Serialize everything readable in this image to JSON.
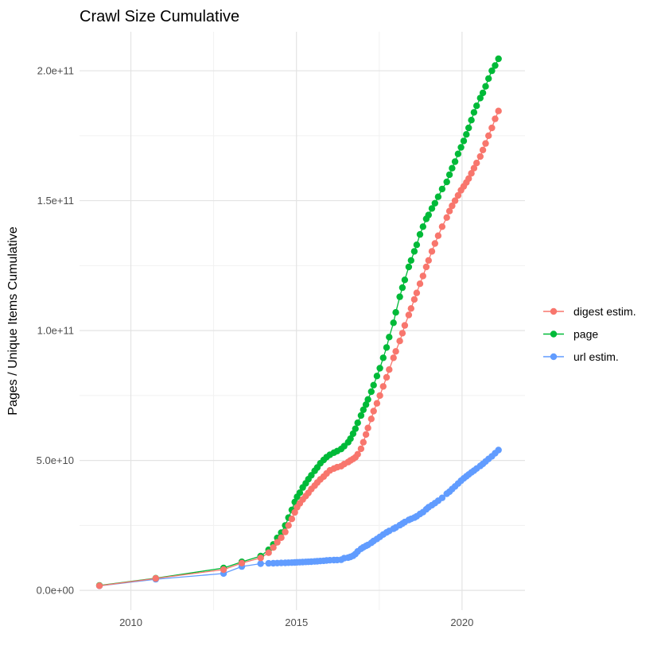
{
  "chart_data": {
    "type": "scatter",
    "title": "Crawl Size Cumulative",
    "xlabel": "",
    "ylabel": "Pages / Unique Items Cumulative",
    "y_unit": "items (values below in billions, 1e9)",
    "x_range": [
      2008.45,
      2021.9
    ],
    "y_range_e9": [
      -7.6,
      215
    ],
    "x_ticks": [
      {
        "value": 2010,
        "label": "2010"
      },
      {
        "value": 2015,
        "label": "2015"
      },
      {
        "value": 2020,
        "label": "2020"
      }
    ],
    "x_minor": [
      2012.5,
      2017.5
    ],
    "y_ticks": [
      {
        "value_e9": 0,
        "label": "0.0e+00"
      },
      {
        "value_e9": 50,
        "label": "5.0e+10"
      },
      {
        "value_e9": 100,
        "label": "1.0e+11"
      },
      {
        "value_e9": 150,
        "label": "1.5e+11"
      },
      {
        "value_e9": 200,
        "label": "2.0e+11"
      }
    ],
    "y_minor_e9": [
      25,
      75,
      125,
      175
    ],
    "grid": {
      "major_color": "#e3e3e3",
      "minor_color": "#f1f1f1",
      "background": "#ffffff"
    },
    "legend": {
      "position": "right",
      "entries": [
        {
          "label": "digest estim.",
          "color": "#F8766D"
        },
        {
          "label": "page",
          "color": "#00BA38"
        },
        {
          "label": "url estim.",
          "color": "#619CFF"
        }
      ]
    },
    "series": [
      {
        "name": "digest estim.",
        "color": "#F8766D",
        "points": [
          [
            2009.05,
            1.8
          ],
          [
            2010.75,
            4.6
          ],
          [
            2012.8,
            8.0
          ],
          [
            2013.35,
            10.5
          ],
          [
            2013.92,
            12.5
          ],
          [
            2014.16,
            14.5
          ],
          [
            2014.3,
            16.5
          ],
          [
            2014.42,
            18.5
          ],
          [
            2014.54,
            20.3
          ],
          [
            2014.66,
            22.5
          ],
          [
            2014.76,
            25.0
          ],
          [
            2014.86,
            27.5
          ],
          [
            2014.95,
            30.0
          ],
          [
            2015.02,
            32.0
          ],
          [
            2015.1,
            33.5
          ],
          [
            2015.19,
            35.0
          ],
          [
            2015.28,
            36.3
          ],
          [
            2015.36,
            37.5
          ],
          [
            2015.45,
            39.0
          ],
          [
            2015.55,
            40.3
          ],
          [
            2015.63,
            41.5
          ],
          [
            2015.72,
            42.7
          ],
          [
            2015.82,
            43.8
          ],
          [
            2015.91,
            45.0
          ],
          [
            2016.01,
            46.2
          ],
          [
            2016.13,
            46.9
          ],
          [
            2016.23,
            47.4
          ],
          [
            2016.35,
            47.8
          ],
          [
            2016.44,
            48.6
          ],
          [
            2016.56,
            49.4
          ],
          [
            2016.63,
            50.0
          ],
          [
            2016.71,
            50.6
          ],
          [
            2016.78,
            51.2
          ],
          [
            2016.85,
            52.4
          ],
          [
            2016.95,
            54.5
          ],
          [
            2017.02,
            57.0
          ],
          [
            2017.1,
            60.0
          ],
          [
            2017.16,
            62.5
          ],
          [
            2017.26,
            66.0
          ],
          [
            2017.33,
            69.0
          ],
          [
            2017.43,
            72.0
          ],
          [
            2017.52,
            75.0
          ],
          [
            2017.62,
            78.5
          ],
          [
            2017.72,
            82.0
          ],
          [
            2017.8,
            85.0
          ],
          [
            2017.93,
            89.5
          ],
          [
            2018.0,
            92.0
          ],
          [
            2018.12,
            96.0
          ],
          [
            2018.2,
            99.0
          ],
          [
            2018.27,
            102.0
          ],
          [
            2018.39,
            106.0
          ],
          [
            2018.46,
            108.5
          ],
          [
            2018.56,
            112.0
          ],
          [
            2018.63,
            114.5
          ],
          [
            2018.73,
            118.0
          ],
          [
            2018.82,
            121.0
          ],
          [
            2018.92,
            124.5
          ],
          [
            2018.99,
            127.0
          ],
          [
            2019.09,
            130.5
          ],
          [
            2019.18,
            133.5
          ],
          [
            2019.28,
            136.5
          ],
          [
            2019.4,
            140.0
          ],
          [
            2019.54,
            143.5
          ],
          [
            2019.62,
            146.0
          ],
          [
            2019.7,
            148.0
          ],
          [
            2019.79,
            150.0
          ],
          [
            2019.88,
            152.0
          ],
          [
            2019.97,
            154.0
          ],
          [
            2020.05,
            155.5
          ],
          [
            2020.13,
            157.0
          ],
          [
            2020.2,
            158.5
          ],
          [
            2020.28,
            160.5
          ],
          [
            2020.36,
            162.5
          ],
          [
            2020.44,
            164.5
          ],
          [
            2020.55,
            167.0
          ],
          [
            2020.63,
            169.5
          ],
          [
            2020.71,
            172.0
          ],
          [
            2020.8,
            175.0
          ],
          [
            2020.9,
            178.0
          ],
          [
            2021.0,
            181.5
          ],
          [
            2021.1,
            184.5
          ]
        ]
      },
      {
        "name": "page",
        "color": "#00BA38",
        "points": [
          [
            2009.05,
            1.9
          ],
          [
            2010.75,
            4.7
          ],
          [
            2012.8,
            8.6
          ],
          [
            2013.35,
            11.0
          ],
          [
            2013.92,
            13.2
          ],
          [
            2014.16,
            15.6
          ],
          [
            2014.3,
            17.7
          ],
          [
            2014.42,
            20.2
          ],
          [
            2014.54,
            22.2
          ],
          [
            2014.66,
            25.0
          ],
          [
            2014.76,
            28.0
          ],
          [
            2014.86,
            31.0
          ],
          [
            2014.95,
            34.0
          ],
          [
            2015.02,
            36.0
          ],
          [
            2015.1,
            37.6
          ],
          [
            2015.19,
            39.6
          ],
          [
            2015.28,
            41.2
          ],
          [
            2015.36,
            42.8
          ],
          [
            2015.45,
            44.3
          ],
          [
            2015.55,
            46.0
          ],
          [
            2015.63,
            47.3
          ],
          [
            2015.72,
            48.9
          ],
          [
            2015.82,
            50.2
          ],
          [
            2015.91,
            51.3
          ],
          [
            2016.01,
            52.2
          ],
          [
            2016.13,
            53.0
          ],
          [
            2016.23,
            53.6
          ],
          [
            2016.35,
            54.4
          ],
          [
            2016.44,
            55.5
          ],
          [
            2016.56,
            57.0
          ],
          [
            2016.63,
            58.4
          ],
          [
            2016.71,
            60.3
          ],
          [
            2016.78,
            62.2
          ],
          [
            2016.85,
            64.5
          ],
          [
            2016.95,
            67.3
          ],
          [
            2017.02,
            69.5
          ],
          [
            2017.1,
            71.5
          ],
          [
            2017.16,
            73.5
          ],
          [
            2017.26,
            76.5
          ],
          [
            2017.33,
            79.0
          ],
          [
            2017.43,
            82.5
          ],
          [
            2017.52,
            85.5
          ],
          [
            2017.62,
            89.5
          ],
          [
            2017.72,
            93.5
          ],
          [
            2017.8,
            97.5
          ],
          [
            2017.93,
            103.0
          ],
          [
            2018.0,
            107.0
          ],
          [
            2018.12,
            113.0
          ],
          [
            2018.2,
            116.5
          ],
          [
            2018.27,
            119.5
          ],
          [
            2018.39,
            124.5
          ],
          [
            2018.46,
            127.0
          ],
          [
            2018.56,
            130.5
          ],
          [
            2018.63,
            133.0
          ],
          [
            2018.73,
            137.0
          ],
          [
            2018.82,
            140.0
          ],
          [
            2018.92,
            143.0
          ],
          [
            2018.99,
            144.5
          ],
          [
            2019.09,
            147.0
          ],
          [
            2019.18,
            149.0
          ],
          [
            2019.28,
            151.5
          ],
          [
            2019.4,
            154.5
          ],
          [
            2019.54,
            157.2
          ],
          [
            2019.62,
            160.0
          ],
          [
            2019.7,
            162.5
          ],
          [
            2019.79,
            165.0
          ],
          [
            2019.88,
            168.0
          ],
          [
            2019.97,
            170.5
          ],
          [
            2020.05,
            173.0
          ],
          [
            2020.13,
            175.5
          ],
          [
            2020.2,
            178.0
          ],
          [
            2020.28,
            181.0
          ],
          [
            2020.36,
            184.0
          ],
          [
            2020.44,
            186.5
          ],
          [
            2020.55,
            189.5
          ],
          [
            2020.63,
            191.5
          ],
          [
            2020.71,
            194.0
          ],
          [
            2020.8,
            197.0
          ],
          [
            2020.9,
            200.0
          ],
          [
            2021.0,
            202.0
          ],
          [
            2021.1,
            204.6
          ]
        ]
      },
      {
        "name": "url estim.",
        "color": "#619CFF",
        "points": [
          [
            2009.05,
            1.75
          ],
          [
            2010.75,
            4.3
          ],
          [
            2012.8,
            6.5
          ],
          [
            2013.35,
            9.2
          ],
          [
            2013.92,
            10.3
          ],
          [
            2014.16,
            10.4
          ],
          [
            2014.3,
            10.45
          ],
          [
            2014.42,
            10.5
          ],
          [
            2014.54,
            10.55
          ],
          [
            2014.66,
            10.6
          ],
          [
            2014.76,
            10.65
          ],
          [
            2014.86,
            10.7
          ],
          [
            2014.95,
            10.75
          ],
          [
            2015.02,
            10.8
          ],
          [
            2015.1,
            10.85
          ],
          [
            2015.19,
            10.9
          ],
          [
            2015.28,
            10.95
          ],
          [
            2015.36,
            11.0
          ],
          [
            2015.45,
            11.05
          ],
          [
            2015.55,
            11.15
          ],
          [
            2015.63,
            11.2
          ],
          [
            2015.72,
            11.3
          ],
          [
            2015.82,
            11.4
          ],
          [
            2015.91,
            11.5
          ],
          [
            2016.01,
            11.6
          ],
          [
            2016.13,
            11.65
          ],
          [
            2016.23,
            11.7
          ],
          [
            2016.35,
            11.8
          ],
          [
            2016.44,
            12.4
          ],
          [
            2016.56,
            12.6
          ],
          [
            2016.63,
            12.9
          ],
          [
            2016.71,
            13.3
          ],
          [
            2016.78,
            14.0
          ],
          [
            2016.85,
            15.0
          ],
          [
            2016.95,
            16.0
          ],
          [
            2017.02,
            16.6
          ],
          [
            2017.1,
            17.1
          ],
          [
            2017.16,
            17.5
          ],
          [
            2017.26,
            18.3
          ],
          [
            2017.33,
            19.0
          ],
          [
            2017.43,
            19.8
          ],
          [
            2017.52,
            20.6
          ],
          [
            2017.62,
            21.5
          ],
          [
            2017.72,
            22.3
          ],
          [
            2017.8,
            22.9
          ],
          [
            2017.93,
            23.7
          ],
          [
            2018.0,
            24.2
          ],
          [
            2018.12,
            25.1
          ],
          [
            2018.2,
            25.7
          ],
          [
            2018.27,
            26.3
          ],
          [
            2018.39,
            27.1
          ],
          [
            2018.46,
            27.5
          ],
          [
            2018.56,
            28.0
          ],
          [
            2018.63,
            28.5
          ],
          [
            2018.73,
            29.4
          ],
          [
            2018.82,
            30.1
          ],
          [
            2018.92,
            31.2
          ],
          [
            2018.99,
            32.0
          ],
          [
            2019.09,
            32.8
          ],
          [
            2019.18,
            33.6
          ],
          [
            2019.28,
            34.5
          ],
          [
            2019.4,
            35.6
          ],
          [
            2019.54,
            37.2
          ],
          [
            2019.62,
            38.0
          ],
          [
            2019.7,
            39.0
          ],
          [
            2019.79,
            40.0
          ],
          [
            2019.88,
            41.1
          ],
          [
            2019.97,
            42.2
          ],
          [
            2020.05,
            43.1
          ],
          [
            2020.13,
            43.9
          ],
          [
            2020.2,
            44.6
          ],
          [
            2020.28,
            45.4
          ],
          [
            2020.36,
            46.1
          ],
          [
            2020.44,
            46.9
          ],
          [
            2020.55,
            47.9
          ],
          [
            2020.63,
            48.7
          ],
          [
            2020.71,
            49.6
          ],
          [
            2020.8,
            50.6
          ],
          [
            2020.9,
            51.6
          ],
          [
            2021.0,
            52.8
          ],
          [
            2021.1,
            54.0
          ]
        ]
      }
    ]
  }
}
